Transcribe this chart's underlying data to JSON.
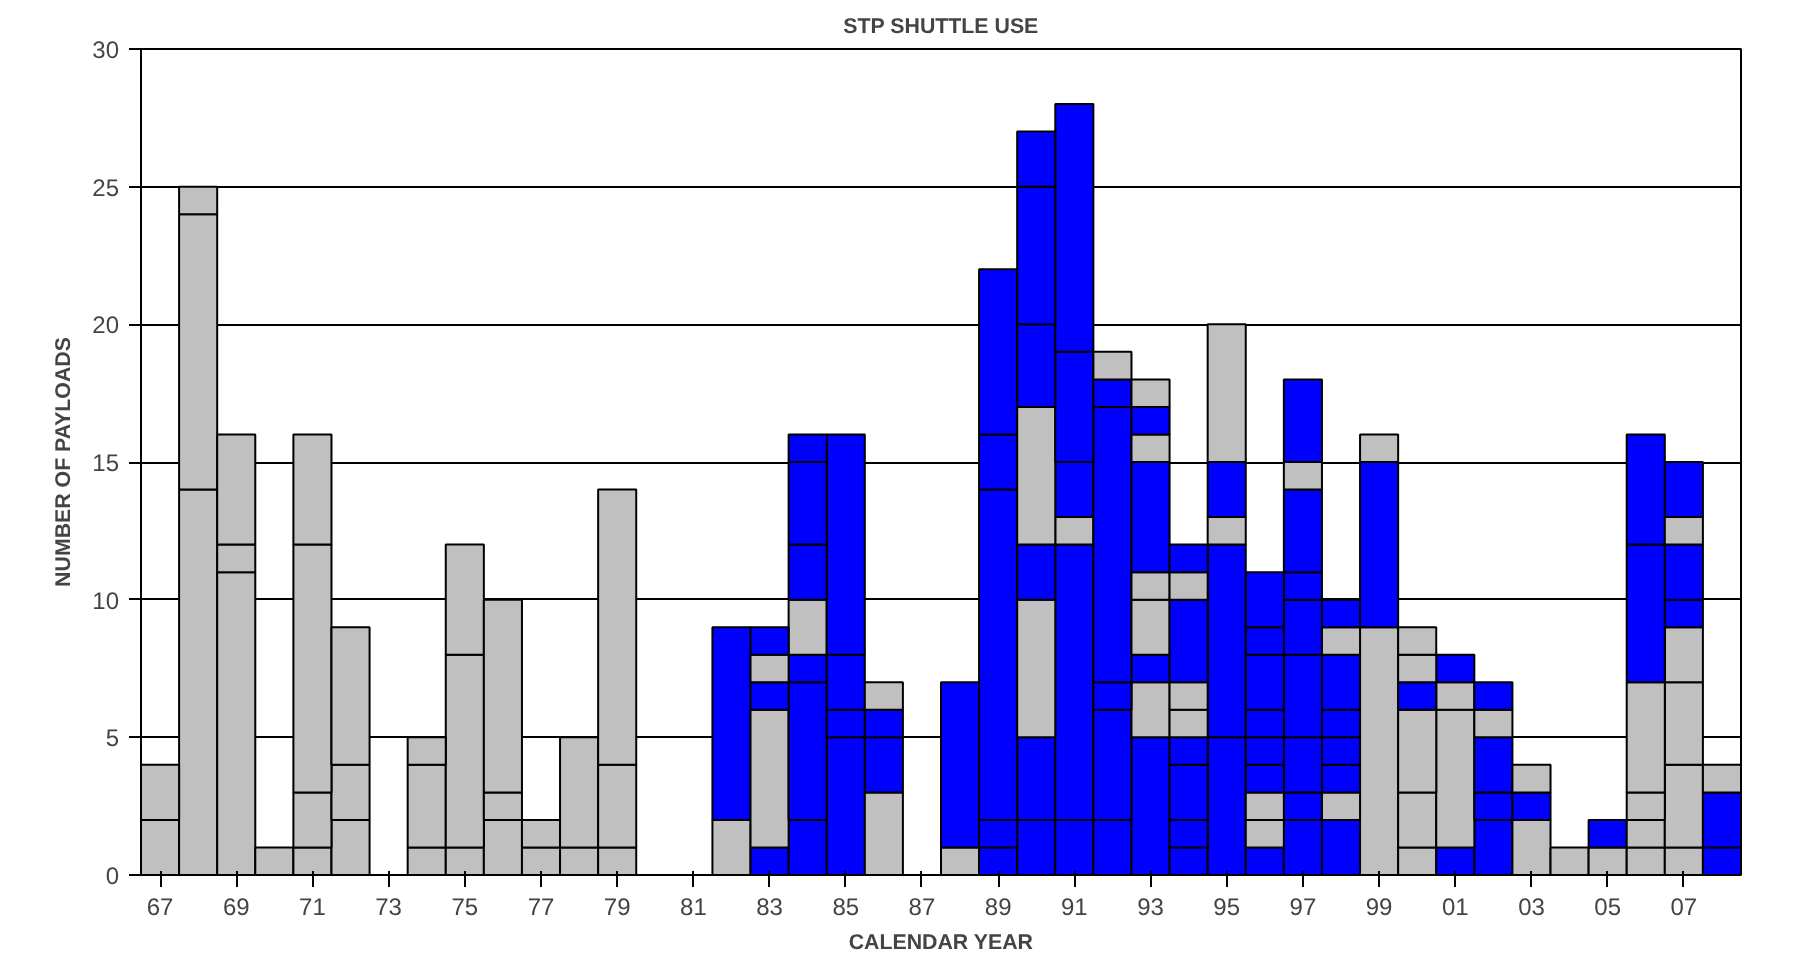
{
  "chart_data": {
    "type": "bar",
    "title": "STP SHUTTLE USE",
    "xlabel": "CALENDAR YEAR",
    "ylabel": "NUMBER OF PAYLOADS",
    "categories": [
      "67",
      null,
      "69",
      null,
      "71",
      null,
      "73",
      null,
      "75",
      null,
      "77",
      null,
      "79",
      null,
      "81",
      null,
      "83",
      null,
      "85",
      null,
      "87",
      null,
      "89",
      null,
      "91",
      null,
      "93",
      null,
      "95",
      null,
      "97",
      null,
      "99",
      null,
      "01",
      null,
      "03",
      null,
      "05",
      null,
      "07",
      null
    ],
    "stacked": true,
    "ylim": [
      0,
      30
    ],
    "yticks": [
      0,
      5,
      10,
      15,
      20,
      25,
      30
    ],
    "grid": "y",
    "series": [
      {
        "values": [
          2,
          14,
          11,
          1,
          1,
          2,
          null,
          1,
          1,
          2,
          1,
          1,
          1,
          null,
          null,
          2,
          1,
          2,
          5,
          3,
          null,
          1,
          1,
          2,
          2,
          2,
          5,
          1,
          5,
          1,
          2,
          2,
          9,
          1,
          1,
          2,
          2,
          1,
          1,
          1,
          1,
          1
        ],
        "colors": [
          "#c0c0c0",
          "#c0c0c0",
          "#c0c0c0",
          "#c0c0c0",
          "#c0c0c0",
          "#c0c0c0",
          null,
          "#c0c0c0",
          "#c0c0c0",
          "#c0c0c0",
          "#c0c0c0",
          "#c0c0c0",
          "#c0c0c0",
          null,
          null,
          "#c0c0c0",
          "#0000ff",
          "#0000ff",
          "#0000ff",
          "#c0c0c0",
          null,
          "#c0c0c0",
          "#0000ff",
          "#0000ff",
          "#0000ff",
          "#0000ff",
          "#0000ff",
          "#0000ff",
          "#0000ff",
          "#0000ff",
          "#0000ff",
          "#0000ff",
          "#c0c0c0",
          "#c0c0c0",
          "#0000ff",
          "#0000ff",
          "#c0c0c0",
          "#c0c0c0",
          "#c0c0c0",
          "#c0c0c0",
          "#c0c0c0",
          "#0000ff"
        ]
      },
      {
        "values": [
          2,
          10,
          1,
          null,
          2,
          2,
          null,
          3,
          7,
          1,
          1,
          4,
          3,
          null,
          null,
          7,
          5,
          5,
          1,
          2,
          null,
          6,
          1,
          3,
          10,
          4,
          2,
          1,
          7,
          1,
          1,
          1,
          6,
          2,
          5,
          1,
          1,
          null,
          1,
          1,
          3,
          2
        ],
        "colors": [
          "#c0c0c0",
          "#c0c0c0",
          "#c0c0c0",
          null,
          "#c0c0c0",
          "#c0c0c0",
          null,
          "#c0c0c0",
          "#c0c0c0",
          "#c0c0c0",
          "#c0c0c0",
          "#c0c0c0",
          "#c0c0c0",
          null,
          null,
          "#0000ff",
          "#c0c0c0",
          "#0000ff",
          "#0000ff",
          "#0000ff",
          null,
          "#0000ff",
          "#0000ff",
          "#0000ff",
          "#0000ff",
          "#0000ff",
          "#c0c0c0",
          "#0000ff",
          "#0000ff",
          "#c0c0c0",
          "#0000ff",
          "#c0c0c0",
          "#0000ff",
          "#c0c0c0",
          "#c0c0c0",
          "#0000ff",
          "#0000ff",
          null,
          "#0000ff",
          "#c0c0c0",
          "#c0c0c0",
          "#0000ff"
        ]
      },
      {
        "values": [
          null,
          1,
          4,
          null,
          9,
          5,
          null,
          1,
          4,
          7,
          null,
          null,
          10,
          null,
          null,
          null,
          1,
          1,
          2,
          1,
          null,
          null,
          12,
          5,
          1,
          1,
          1,
          2,
          1,
          1,
          2,
          1,
          1,
          3,
          1,
          2,
          1,
          null,
          null,
          1,
          3,
          1
        ],
        "colors": [
          null,
          "#c0c0c0",
          "#c0c0c0",
          null,
          "#c0c0c0",
          "#c0c0c0",
          null,
          "#c0c0c0",
          "#c0c0c0",
          "#c0c0c0",
          null,
          null,
          "#c0c0c0",
          null,
          null,
          null,
          "#0000ff",
          "#0000ff",
          "#0000ff",
          "#0000ff",
          null,
          null,
          "#0000ff",
          "#c0c0c0",
          "#c0c0c0",
          "#0000ff",
          "#0000ff",
          "#0000ff",
          "#c0c0c0",
          "#c0c0c0",
          "#0000ff",
          "#0000ff",
          "#c0c0c0",
          "#c0c0c0",
          "#c0c0c0",
          "#0000ff",
          "#c0c0c0",
          null,
          null,
          "#c0c0c0",
          "#c0c0c0",
          "#c0c0c0"
        ]
      },
      {
        "values": [
          null,
          null,
          null,
          null,
          4,
          null,
          null,
          null,
          null,
          null,
          null,
          null,
          null,
          null,
          null,
          null,
          1,
          2,
          8,
          1,
          null,
          null,
          2,
          2,
          2,
          10,
          2,
          1,
          2,
          1,
          3,
          1,
          null,
          1,
          1,
          1,
          null,
          null,
          null,
          4,
          2,
          null
        ],
        "colors": [
          null,
          null,
          null,
          null,
          "#c0c0c0",
          null,
          null,
          null,
          null,
          null,
          null,
          null,
          null,
          null,
          null,
          null,
          "#c0c0c0",
          "#c0c0c0",
          "#0000ff",
          "#c0c0c0",
          null,
          null,
          "#0000ff",
          "#0000ff",
          "#0000ff",
          "#0000ff",
          "#c0c0c0",
          "#0000ff",
          "#0000ff",
          "#0000ff",
          "#0000ff",
          "#0000ff",
          null,
          "#0000ff",
          "#0000ff",
          "#c0c0c0",
          null,
          null,
          null,
          "#c0c0c0",
          "#c0c0c0",
          null
        ]
      },
      {
        "values": [
          null,
          null,
          null,
          null,
          null,
          null,
          null,
          null,
          null,
          null,
          null,
          null,
          null,
          null,
          null,
          null,
          1,
          2,
          null,
          null,
          null,
          null,
          6,
          5,
          4,
          1,
          1,
          1,
          5,
          1,
          2,
          1,
          null,
          1,
          null,
          1,
          null,
          null,
          null,
          5,
          1,
          null
        ],
        "colors": [
          null,
          null,
          null,
          null,
          null,
          null,
          null,
          null,
          null,
          null,
          null,
          null,
          null,
          null,
          null,
          null,
          "#0000ff",
          "#0000ff",
          null,
          null,
          null,
          null,
          "#0000ff",
          "#c0c0c0",
          "#0000ff",
          "#0000ff",
          "#c0c0c0",
          "#c0c0c0",
          "#c0c0c0",
          "#0000ff",
          "#0000ff",
          "#0000ff",
          null,
          "#c0c0c0",
          null,
          "#0000ff",
          null,
          null,
          null,
          "#0000ff",
          "#0000ff",
          null
        ]
      },
      {
        "values": [
          null,
          null,
          null,
          null,
          null,
          null,
          null,
          null,
          null,
          null,
          null,
          null,
          null,
          null,
          null,
          null,
          null,
          3,
          null,
          null,
          null,
          null,
          null,
          3,
          9,
          1,
          4,
          1,
          null,
          1,
          1,
          2,
          null,
          1,
          null,
          null,
          null,
          null,
          null,
          4,
          2,
          null
        ],
        "colors": [
          null,
          null,
          null,
          null,
          null,
          null,
          null,
          null,
          null,
          null,
          null,
          null,
          null,
          null,
          null,
          null,
          null,
          "#0000ff",
          null,
          null,
          null,
          null,
          null,
          "#0000ff",
          "#0000ff",
          "#c0c0c0",
          "#0000ff",
          "#c0c0c0",
          null,
          "#0000ff",
          "#0000ff",
          "#0000ff",
          null,
          "#c0c0c0",
          null,
          null,
          null,
          null,
          null,
          "#0000ff",
          "#0000ff",
          null
        ]
      },
      {
        "values": [
          null,
          null,
          null,
          null,
          null,
          null,
          null,
          null,
          null,
          null,
          null,
          null,
          null,
          null,
          null,
          null,
          null,
          1,
          null,
          null,
          null,
          null,
          null,
          5,
          null,
          null,
          1,
          3,
          null,
          2,
          3,
          1,
          null,
          null,
          null,
          null,
          null,
          null,
          null,
          null,
          1,
          null
        ],
        "colors": [
          null,
          null,
          null,
          null,
          null,
          null,
          null,
          null,
          null,
          null,
          null,
          null,
          null,
          null,
          null,
          null,
          null,
          "#0000ff",
          null,
          null,
          null,
          null,
          null,
          "#0000ff",
          null,
          null,
          "#c0c0c0",
          "#0000ff",
          null,
          "#0000ff",
          "#0000ff",
          "#c0c0c0",
          null,
          null,
          null,
          null,
          null,
          null,
          null,
          null,
          "#c0c0c0",
          null
        ]
      },
      {
        "values": [
          null,
          null,
          null,
          null,
          null,
          null,
          null,
          null,
          null,
          null,
          null,
          null,
          null,
          null,
          null,
          null,
          null,
          null,
          null,
          null,
          null,
          null,
          null,
          2,
          null,
          null,
          1,
          1,
          null,
          1,
          1,
          1,
          null,
          null,
          null,
          null,
          null,
          null,
          null,
          null,
          2,
          null
        ],
        "colors": [
          null,
          null,
          null,
          null,
          null,
          null,
          null,
          null,
          null,
          null,
          null,
          null,
          null,
          null,
          null,
          null,
          null,
          null,
          null,
          null,
          null,
          null,
          null,
          "#0000ff",
          null,
          null,
          "#0000ff",
          "#c0c0c0",
          null,
          "#0000ff",
          "#c0c0c0",
          "#0000ff",
          null,
          null,
          null,
          null,
          null,
          null,
          null,
          null,
          "#0000ff",
          null
        ]
      },
      {
        "values": [
          null,
          null,
          null,
          null,
          null,
          null,
          null,
          null,
          null,
          null,
          null,
          null,
          null,
          null,
          null,
          null,
          null,
          null,
          null,
          null,
          null,
          null,
          null,
          null,
          null,
          null,
          1,
          1,
          null,
          2,
          3,
          null,
          null,
          null,
          null,
          null,
          null,
          null,
          null,
          null,
          null,
          null
        ],
        "colors": [
          null,
          null,
          null,
          null,
          null,
          null,
          null,
          null,
          null,
          null,
          null,
          null,
          null,
          null,
          null,
          null,
          null,
          null,
          null,
          null,
          null,
          null,
          null,
          null,
          null,
          null,
          "#c0c0c0",
          "#0000ff",
          null,
          "#0000ff",
          "#0000ff",
          null,
          null,
          null,
          null,
          null,
          null,
          null,
          null,
          null,
          null,
          null
        ]
      }
    ]
  }
}
